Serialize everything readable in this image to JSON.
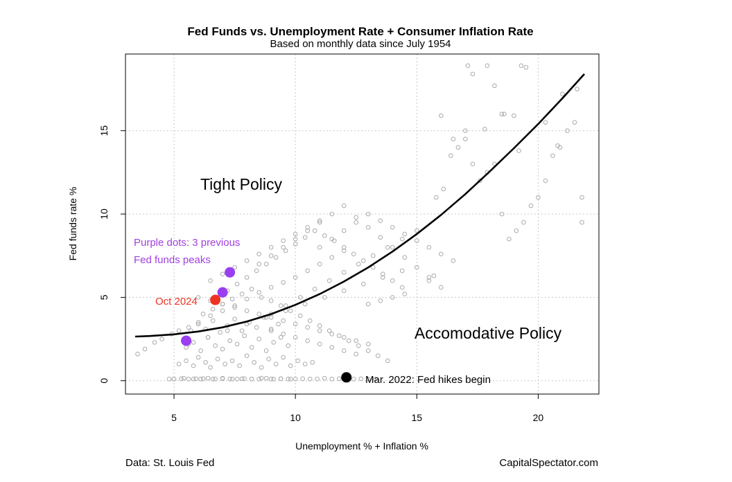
{
  "chart_data": {
    "type": "scatter",
    "title": "Fed Funds vs. Unemployment Rate + Consumer Inflation Rate",
    "subtitle": "Based on monthly data since July 1954",
    "xlabel": "Unemployment % + Inflation %",
    "ylabel": "Fed funds rate %",
    "xlim": [
      3,
      22.5
    ],
    "ylim": [
      -0.8,
      19.6
    ],
    "xticks": [
      5,
      10,
      15,
      20
    ],
    "yticks": [
      0,
      5,
      10,
      15
    ],
    "grid": true,
    "colors": {
      "points": "#aaaaaa",
      "curve": "#000000",
      "peaks": "#9b3df0",
      "current": "#ee3322",
      "hike": "#000000",
      "peaks_label": "#a040e0",
      "current_label": "#ee3322",
      "grid": "#c8c8c8"
    },
    "fit_curve": {
      "x": [
        3.4,
        4,
        5,
        6,
        7,
        8,
        9,
        10,
        11,
        12,
        13,
        14,
        15,
        16,
        17,
        18,
        19,
        20,
        21,
        21.9
      ],
      "y": [
        2.65,
        2.68,
        2.78,
        2.95,
        3.2,
        3.55,
        4.0,
        4.55,
        5.2,
        5.95,
        6.8,
        7.75,
        8.8,
        9.95,
        11.2,
        12.55,
        13.95,
        15.4,
        16.95,
        18.4
      ]
    },
    "points": {
      "x": [
        4.8,
        5.0,
        5.3,
        5.6,
        5.9,
        6.1,
        6.4,
        6.7,
        7.0,
        7.3,
        7.6,
        7.9,
        8.2,
        8.5,
        8.8,
        9.1,
        9.4,
        9.7,
        10.0,
        10.3,
        10.6,
        10.9,
        11.2,
        11.5,
        11.8,
        12.1,
        12.4,
        12.7,
        13.0,
        13.3,
        5.2,
        5.5,
        5.8,
        6.0,
        6.3,
        6.5,
        6.8,
        7.1,
        7.4,
        7.7,
        8.0,
        8.3,
        8.6,
        8.9,
        9.2,
        9.5,
        9.8,
        10.1,
        10.4,
        10.7,
        5.5,
        5.8,
        6.1,
        6.4,
        6.7,
        7.0,
        7.3,
        7.6,
        7.9,
        8.2,
        8.5,
        8.8,
        9.1,
        9.4,
        9.7,
        5.7,
        6.0,
        6.3,
        6.6,
        6.9,
        7.2,
        7.5,
        7.8,
        8.1,
        8.4,
        8.7,
        9.0,
        9.3,
        3.5,
        3.8,
        4.2,
        4.5,
        4.9,
        5.2,
        5.6,
        6.0,
        6.5,
        7.0,
        7.5,
        8.0,
        8.5,
        9.0,
        9.5,
        10.0,
        10.5,
        11.0,
        11.5,
        12.0,
        6.2,
        6.6,
        7.0,
        7.4,
        7.8,
        8.2,
        8.6,
        9.0,
        9.4,
        9.8,
        10.2,
        10.6,
        11.0,
        11.4,
        11.8,
        12.2,
        12.6,
        13.0,
        13.4,
        13.8,
        6.8,
        7.2,
        7.6,
        8.0,
        8.4,
        8.8,
        9.2,
        9.6,
        10.0,
        10.4,
        10.8,
        11.2,
        11.6,
        12.0,
        12.4,
        12.8,
        13.2,
        13.6,
        14.0,
        14.4,
        8.5,
        9.0,
        9.5,
        10.0,
        10.5,
        11.0,
        11.5,
        12.0,
        12.5,
        13.0,
        13.5,
        14.0,
        14.5,
        15.0,
        15.5,
        16.0,
        9.0,
        9.6,
        10.2,
        10.8,
        11.4,
        12.0,
        12.6,
        13.2,
        13.8,
        14.4,
        15.0,
        11.0,
        11.5,
        12.0,
        12.5,
        13.0,
        13.5,
        14.0,
        14.5,
        15.0,
        15.5,
        16.0,
        16.5,
        6.5,
        7.0,
        7.5,
        8.0,
        8.5,
        9.0,
        9.5,
        10.0,
        10.5,
        11.0,
        9.0,
        9.5,
        10.0,
        10.5,
        11.0,
        11.5,
        12.0,
        12.5,
        13.0,
        13.5,
        14.0,
        14.5,
        15.5,
        15.8,
        16.1,
        16.4,
        16.7,
        17.0,
        17.3,
        17.6,
        17.9,
        18.2,
        18.5,
        18.8,
        19.1,
        19.4,
        19.7,
        20.0,
        20.3,
        20.6,
        20.9,
        21.2,
        21.5,
        21.8,
        17.1,
        17.3,
        17.9,
        18.2,
        19.3,
        19.5,
        21.6,
        21.0,
        20.3,
        19.0,
        18.5,
        17.8,
        16.0,
        16.5,
        17.0,
        20.8,
        21.8,
        19.2,
        18.6,
        15.7,
        6.0,
        6.5,
        7.0,
        7.5,
        8.0,
        8.5,
        9.0,
        9.5,
        10.0,
        10.5,
        11.0,
        11.5,
        12.0,
        12.5,
        13.0,
        5.6,
        6.4,
        7.2,
        8.0,
        8.8,
        9.6,
        10.4,
        11.2,
        12.0,
        12.8,
        13.6,
        14.4,
        5.0,
        5.4,
        5.8,
        6.2,
        6.6,
        7.0,
        7.4,
        7.8,
        8.2,
        8.6,
        9.0,
        9.4,
        9.8
      ],
      "y": [
        0.1,
        0.1,
        0.12,
        0.1,
        0.12,
        0.1,
        0.15,
        0.1,
        0.12,
        0.1,
        0.1,
        0.12,
        0.1,
        0.1,
        0.15,
        0.1,
        0.12,
        0.1,
        0.1,
        0.12,
        0.1,
        0.1,
        0.15,
        0.1,
        0.12,
        0.1,
        0.1,
        0.12,
        0.1,
        0.1,
        1.0,
        1.2,
        0.9,
        1.4,
        1.1,
        0.8,
        1.3,
        1.0,
        1.2,
        0.9,
        1.5,
        1.1,
        0.8,
        1.3,
        1.0,
        1.4,
        0.9,
        1.2,
        1.0,
        1.1,
        2.0,
        2.3,
        1.8,
        2.6,
        2.1,
        1.9,
        2.4,
        2.2,
        2.7,
        2.0,
        2.5,
        1.8,
        2.3,
        2.6,
        2.1,
        3.0,
        3.4,
        3.1,
        3.6,
        2.9,
        3.3,
        3.7,
        3.0,
        3.5,
        3.2,
        3.8,
        3.1,
        3.4,
        1.6,
        1.9,
        2.3,
        2.5,
        2.8,
        3.0,
        3.2,
        3.5,
        3.9,
        4.2,
        4.5,
        4.9,
        5.3,
        5.6,
        5.9,
        6.2,
        6.6,
        7.0,
        7.4,
        7.8,
        4.0,
        4.3,
        4.6,
        4.9,
        5.2,
        5.5,
        5.0,
        4.8,
        4.5,
        4.2,
        3.9,
        3.6,
        3.3,
        3.0,
        2.7,
        2.4,
        2.1,
        1.8,
        1.5,
        1.2,
        5.0,
        5.4,
        5.8,
        6.2,
        6.6,
        7.0,
        7.4,
        7.8,
        8.2,
        8.6,
        9.0,
        8.7,
        8.4,
        8.0,
        7.6,
        7.2,
        6.8,
        6.4,
        6.0,
        5.6,
        7.0,
        7.5,
        8.0,
        8.5,
        9.0,
        9.5,
        10.0,
        10.5,
        9.8,
        9.2,
        8.6,
        8.0,
        7.4,
        6.8,
        6.2,
        5.6,
        4.0,
        4.5,
        5.0,
        5.5,
        6.0,
        6.5,
        7.0,
        7.5,
        8.0,
        8.5,
        9.0,
        8.0,
        8.5,
        9.0,
        9.5,
        10.0,
        9.6,
        9.2,
        8.8,
        8.4,
        8.0,
        7.6,
        7.2,
        6.0,
        6.4,
        6.8,
        7.2,
        7.6,
        8.0,
        8.4,
        8.8,
        9.2,
        9.6,
        3.0,
        2.8,
        2.6,
        2.4,
        2.2,
        2.0,
        1.8,
        1.6,
        4.6,
        4.8,
        5.0,
        5.2,
        6.0,
        11.0,
        11.5,
        13.5,
        14.0,
        14.5,
        13.0,
        12.0,
        12.5,
        13.0,
        10.0,
        8.5,
        9.0,
        9.5,
        10.5,
        11.0,
        12.0,
        13.5,
        14.0,
        15.0,
        15.5,
        11.0,
        18.9,
        18.4,
        18.9,
        17.7,
        18.9,
        18.8,
        17.5,
        17.2,
        15.5,
        15.9,
        16.0,
        15.1,
        15.9,
        14.5,
        15.0,
        14.1,
        9.5,
        13.8,
        16.0,
        6.3,
        5.0,
        4.8,
        4.6,
        4.4,
        4.2,
        4.0,
        3.8,
        3.6,
        3.4,
        3.2,
        3.0,
        2.8,
        2.6,
        2.4,
        2.2,
        2.2,
        2.6,
        3.0,
        3.4,
        3.8,
        4.2,
        4.6,
        5.0,
        5.4,
        5.8,
        6.2,
        6.6,
        0.1,
        0.15,
        0.1,
        0.12,
        0.1,
        0.15,
        0.1,
        0.12,
        0.1,
        0.15,
        0.1,
        0.12,
        0.1
      ]
    },
    "peak_dots": {
      "x": [
        7.3,
        7.0,
        5.5
      ],
      "y": [
        6.5,
        5.3,
        2.4
      ]
    },
    "current_dot": {
      "x": 6.7,
      "y": 4.85
    },
    "hike_dot": {
      "x": 12.1,
      "y": 0.2
    }
  },
  "labels": {
    "tight": "Tight Policy",
    "accommodative": "Accomodative Policy",
    "peaks_note_1": "Purple dots: 3 previous",
    "peaks_note_2": "Fed funds peaks",
    "current": "Oct 2024",
    "hike": "Mar. 2022: Fed hikes begin"
  },
  "footer": {
    "source": "Data: St. Louis Fed",
    "site": "CapitalSpectator.com"
  }
}
